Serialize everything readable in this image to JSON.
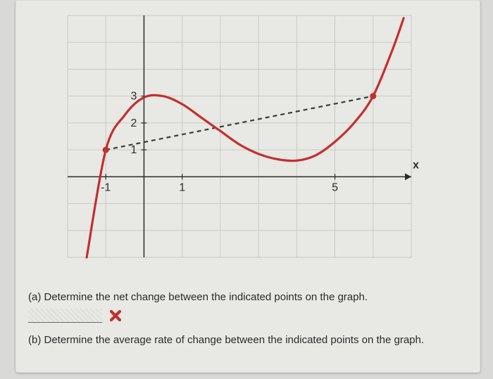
{
  "chart": {
    "type": "line",
    "background_color": "#e8e8e5",
    "grid_color": "#c9cac6",
    "axis_color": "#2b2b2b",
    "curve_color": "#c2302f",
    "secant_color": "#3a3a3a",
    "label_color": "#2b2b2b",
    "label_fontsize": 16,
    "x_axis_label": "x",
    "xlim": [
      -2,
      7
    ],
    "ylim": [
      -3,
      6
    ],
    "xtick_labels": [
      {
        "x": -1,
        "text": "-1"
      },
      {
        "x": 1,
        "text": "1"
      },
      {
        "x": 5,
        "text": "5"
      }
    ],
    "ytick_labels": [
      {
        "y": 1,
        "text": "1"
      },
      {
        "y": 2,
        "text": "2"
      },
      {
        "y": 3,
        "text": "3"
      }
    ],
    "secant_points": [
      {
        "x": -1,
        "y": 1
      },
      {
        "x": 6,
        "y": 3
      }
    ],
    "curve_samples": [
      {
        "x": -1.5,
        "y": -3.0
      },
      {
        "x": -1.0,
        "y": 1.0
      },
      {
        "x": -0.5,
        "y": 2.3
      },
      {
        "x": 0.0,
        "y": 2.95
      },
      {
        "x": 0.5,
        "y": 3.0
      },
      {
        "x": 1.0,
        "y": 2.7
      },
      {
        "x": 1.5,
        "y": 2.2
      },
      {
        "x": 2.0,
        "y": 1.7
      },
      {
        "x": 2.5,
        "y": 1.2
      },
      {
        "x": 3.0,
        "y": 0.85
      },
      {
        "x": 3.5,
        "y": 0.65
      },
      {
        "x": 4.0,
        "y": 0.6
      },
      {
        "x": 4.5,
        "y": 0.8
      },
      {
        "x": 5.0,
        "y": 1.3
      },
      {
        "x": 5.5,
        "y": 2.0
      },
      {
        "x": 6.0,
        "y": 3.0
      },
      {
        "x": 6.5,
        "y": 4.7
      },
      {
        "x": 6.8,
        "y": 5.9
      }
    ],
    "curve_width": 3.2,
    "secant_width": 2.2,
    "secant_dash": "6,5",
    "marker_radius": 4
  },
  "questions": {
    "a": "(a) Determine the net change between the indicated points on the graph.",
    "b": "(b) Determine the average rate of change between the indicated points on the graph."
  },
  "feedback": {
    "incorrect_color": "#c2302f"
  }
}
